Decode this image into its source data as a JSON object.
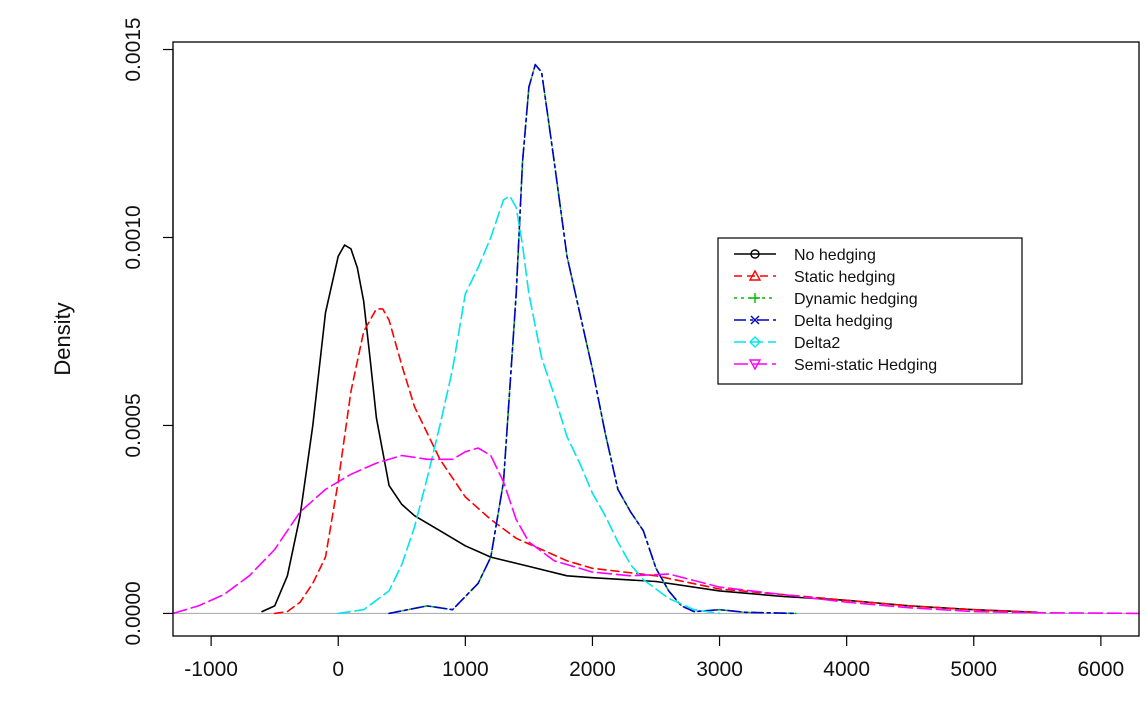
{
  "chart_data": {
    "type": "line",
    "title": "",
    "xlabel": "",
    "ylabel": "Density",
    "xlim": [
      -1300,
      6300
    ],
    "ylim": [
      -6e-05,
      0.00152
    ],
    "xticks": [
      -1000,
      0,
      1000,
      2000,
      3000,
      4000,
      5000,
      6000
    ],
    "xtick_labels": [
      "-1000",
      "0",
      "1000",
      "2000",
      "3000",
      "4000",
      "5000",
      "6000"
    ],
    "yticks": [
      0,
      0.0005,
      0.001,
      0.0015
    ],
    "ytick_labels": [
      "0.0000",
      "0.0005",
      "0.0010",
      "0.0015"
    ],
    "grid": false,
    "baseline": 0,
    "legend": {
      "placement": "right",
      "entries": [
        "No hedging",
        "Static hedging",
        "Dynamic hedging",
        "Delta hedging",
        "Delta2",
        "Semi-static Hedging"
      ]
    },
    "series": [
      {
        "name": "No hedging",
        "color": "#000000",
        "dash": "solid",
        "marker": "circle",
        "x": [
          -600,
          -500,
          -400,
          -300,
          -200,
          -100,
          0,
          50,
          100,
          150,
          200,
          250,
          300,
          400,
          500,
          600,
          800,
          1000,
          1200,
          1500,
          1800,
          2000,
          2500,
          3000,
          3500,
          4000,
          4500,
          5000,
          5500
        ],
        "y": [
          5e-06,
          2e-05,
          0.0001,
          0.00026,
          0.0005,
          0.0008,
          0.00095,
          0.00098,
          0.00097,
          0.00092,
          0.00083,
          0.00068,
          0.00052,
          0.00034,
          0.00029,
          0.00026,
          0.00022,
          0.00018,
          0.00015,
          0.000125,
          0.0001,
          9.5e-05,
          8.5e-05,
          6e-05,
          4.5e-05,
          3.5e-05,
          2e-05,
          1e-05,
          3e-06
        ]
      },
      {
        "name": "Static hedging",
        "color": "#ff0000",
        "dash": "8,5",
        "marker": "triangle",
        "x": [
          -500,
          -400,
          -300,
          -200,
          -100,
          0,
          100,
          200,
          300,
          350,
          400,
          500,
          600,
          700,
          800,
          1000,
          1200,
          1400,
          1600,
          1800,
          2000,
          2500,
          3000,
          3500,
          4000,
          4500,
          5000,
          5500
        ],
        "y": [
          0.0,
          5e-06,
          3e-05,
          8e-05,
          0.00015,
          0.00035,
          0.00059,
          0.00075,
          0.00081,
          0.00081,
          0.00078,
          0.00066,
          0.00055,
          0.00048,
          0.00041,
          0.00031,
          0.00025,
          0.0002,
          0.00017,
          0.00014,
          0.00012,
          0.0001,
          6.5e-05,
          5e-05,
          3.5e-05,
          2e-05,
          1e-05,
          3e-06
        ]
      },
      {
        "name": "Dynamic hedging",
        "color": "#00bb00",
        "dash": "3,4",
        "marker": "plus",
        "x": [
          400,
          700,
          900,
          1100,
          1200,
          1300,
          1400,
          1450,
          1500,
          1550,
          1600,
          1650,
          1700,
          1800,
          1900,
          2000,
          2100,
          2200,
          2300,
          2400,
          2500,
          2600,
          2700,
          2800,
          3000,
          3200,
          3600
        ],
        "y": [
          0.0,
          2e-05,
          1e-05,
          8e-05,
          0.00015,
          0.00035,
          0.00085,
          0.0012,
          0.0014,
          0.00146,
          0.00144,
          0.00132,
          0.0012,
          0.00095,
          0.0008,
          0.00065,
          0.00048,
          0.00033,
          0.00027,
          0.00022,
          0.00012,
          6e-05,
          2e-05,
          5e-06,
          1e-05,
          3e-06,
          0.0
        ]
      },
      {
        "name": "Delta hedging",
        "color": "#0000cc",
        "dash": "12,4,3,4",
        "marker": "x",
        "x": [
          400,
          700,
          900,
          1100,
          1200,
          1300,
          1400,
          1450,
          1500,
          1550,
          1600,
          1650,
          1700,
          1800,
          1900,
          2000,
          2100,
          2200,
          2300,
          2400,
          2500,
          2600,
          2700,
          2800,
          3000,
          3200,
          3600
        ],
        "y": [
          0.0,
          2e-05,
          1e-05,
          8e-05,
          0.00015,
          0.00035,
          0.00085,
          0.0012,
          0.0014,
          0.00146,
          0.00144,
          0.00132,
          0.0012,
          0.00095,
          0.0008,
          0.00065,
          0.00048,
          0.00033,
          0.00027,
          0.00022,
          0.00012,
          6e-05,
          2e-05,
          5e-06,
          1e-05,
          3e-06,
          0.0
        ]
      },
      {
        "name": "Delta2",
        "color": "#00e5ee",
        "dash": "12,5",
        "marker": "diamond",
        "x": [
          0,
          200,
          400,
          500,
          600,
          700,
          800,
          900,
          1000,
          1100,
          1200,
          1300,
          1350,
          1400,
          1450,
          1500,
          1600,
          1700,
          1800,
          1900,
          2000,
          2100,
          2200,
          2300,
          2400,
          2600,
          2800,
          3000
        ],
        "y": [
          0.0,
          1e-05,
          6e-05,
          0.00013,
          0.00023,
          0.00036,
          0.0005,
          0.00065,
          0.00085,
          0.00092,
          0.001,
          0.0011,
          0.00111,
          0.00108,
          0.00098,
          0.00085,
          0.00068,
          0.00058,
          0.00047,
          0.0004,
          0.00032,
          0.00026,
          0.00019,
          0.00013,
          9e-05,
          4e-05,
          1e-05,
          0.0
        ]
      },
      {
        "name": "Semi-static Hedging",
        "color": "#ff00ff",
        "dash": "14,5",
        "marker": "triangle-down",
        "x": [
          -1300,
          -1100,
          -900,
          -700,
          -500,
          -300,
          -100,
          100,
          300,
          500,
          700,
          900,
          1000,
          1100,
          1200,
          1300,
          1400,
          1500,
          1700,
          2000,
          2300,
          2600,
          3000,
          3500,
          4000,
          4500,
          5000,
          5500,
          6000,
          6300
        ],
        "y": [
          0.0,
          2e-05,
          5e-05,
          0.0001,
          0.00017,
          0.00027,
          0.00033,
          0.00037,
          0.0004,
          0.00042,
          0.00041,
          0.00041,
          0.00043,
          0.00044,
          0.00042,
          0.00035,
          0.00025,
          0.00019,
          0.00014,
          0.00011,
          0.0001,
          0.000105,
          7e-05,
          5e-05,
          3e-05,
          1.5e-05,
          5e-06,
          2e-06,
          1e-06,
          0.0
        ]
      }
    ]
  }
}
